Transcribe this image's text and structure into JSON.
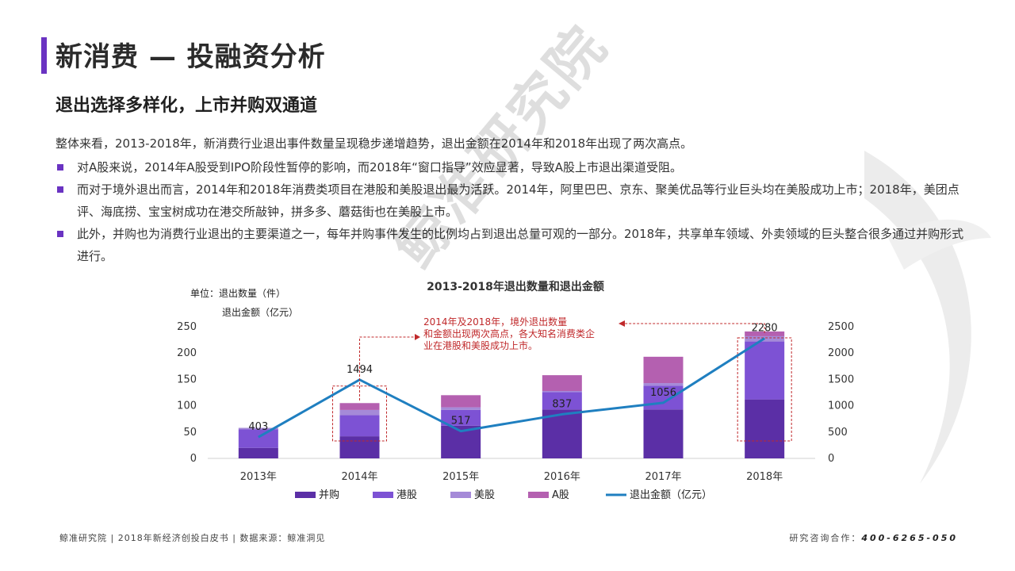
{
  "page": {
    "title": "新消费 — 投融资分析",
    "subtitle": "退出选择多样化，上市并购双通道",
    "intro": "整体来看，2013-2018年，新消费行业退出事件数量呈现稳步递增趋势，退出金额在2014年和2018年出现了两次高点。",
    "bullets": [
      "对A股来说，2014年A股受到IPO阶段性暂停的影响，而2018年“窗口指导”效应显著，导致A股上市退出渠道受阻。",
      "而对于境外退出而言，2014年和2018年消费类项目在港股和美股退出最为活跃。2014年，阿里巴巴、京东、聚美优品等行业巨头均在美股成功上市；2018年，美团点评、海底捞、宝宝树成功在港交所敲钟，拼多多、蘑菇街也在美股上市。",
      "此外，并购也为消费行业退出的主要渠道之一，每年并购事件发生的比例均占到退出总量可观的一部分。2018年，共享单车领域、外卖领域的巨头整合很多通过并购形式进行。"
    ],
    "watermark": "鲸准研究院"
  },
  "footer": {
    "left": "鲸准研究院 | 2018年新经济创投白皮书 | 数据来源：鲸准洞见",
    "right_label": "研究咨询合作：",
    "right_phone": "400-6265-050"
  },
  "colors": {
    "accent": "#6a33c2",
    "并购": "#5b2fa6",
    "港股": "#7d52d4",
    "美股": "#a58ad8",
    "A股": "#b460b0",
    "line": "#1f7fc0",
    "highlight": "#c0292b"
  },
  "chart_data": {
    "type": "bar+line",
    "title": "2013-2018年退出数量和退出金额",
    "unit_label_1": "单位：退出数量（件）",
    "unit_label_2": "退出金额（亿元）",
    "categories": [
      "2013年",
      "2014年",
      "2015年",
      "2016年",
      "2017年",
      "2018年"
    ],
    "stack_series": [
      {
        "name": "并购",
        "values": [
          20,
          42,
          62,
          93,
          93,
          112
        ]
      },
      {
        "name": "港股",
        "values": [
          35,
          40,
          30,
          33,
          45,
          110
        ]
      },
      {
        "name": "美股",
        "values": [
          3,
          10,
          5,
          2,
          5,
          10
        ]
      },
      {
        "name": "A股",
        "values": [
          0,
          13,
          23,
          30,
          50,
          9
        ]
      }
    ],
    "line_series": {
      "name": "退出金额（亿元）",
      "values": [
        403,
        1494,
        517,
        837,
        1056,
        2280
      ]
    },
    "y_left": {
      "min": 0,
      "max": 250,
      "ticks": [
        0,
        50,
        100,
        150,
        200,
        250
      ]
    },
    "y_right": {
      "min": 0,
      "max": 2500,
      "ticks": [
        0,
        500,
        1000,
        1500,
        2000,
        2500
      ]
    },
    "annotation": "2014年及2018年，境外退出数量和金额出现两次高点，各大知名消费类企业在港股和美股成功上市。",
    "highlight_categories": [
      "2014年",
      "2018年"
    ],
    "legend_position": "bottom"
  }
}
